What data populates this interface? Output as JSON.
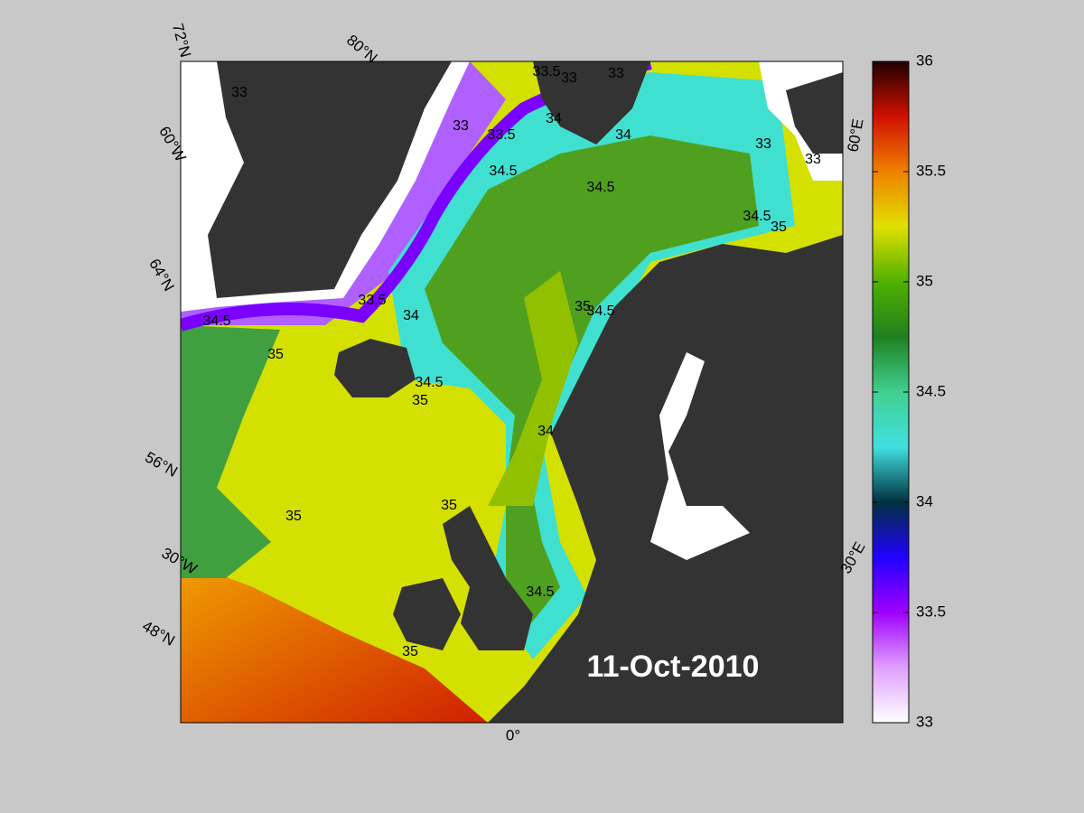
{
  "map": {
    "date_label": "11-Oct-2010",
    "graticule_labels": [
      "72°N",
      "80°N",
      "60°W",
      "64°N",
      "56°N",
      "30°W",
      "48°N",
      "0°",
      "30°E",
      "60°E"
    ],
    "contour_labels": [
      33.5,
      33,
      33,
      33,
      34,
      33.5,
      34,
      33,
      34.5,
      34.5,
      34.5,
      33,
      33,
      33.5,
      34,
      35,
      34.5,
      35,
      34.5,
      35,
      34,
      35,
      35,
      34.5,
      35,
      34.5,
      35
    ],
    "colorbar": {
      "lim": [
        33,
        36
      ],
      "ticks": [
        33,
        33.5,
        34,
        34.5,
        35,
        35.5,
        36
      ],
      "colormap": [
        "#ffffff",
        "#e0a0ff",
        "#a000ff",
        "#2000ff",
        "#003040",
        "#40e0e0",
        "#40d090",
        "#208020",
        "#50b000",
        "#e0e000",
        "#f08000",
        "#d01000",
        "#200000"
      ]
    }
  }
}
